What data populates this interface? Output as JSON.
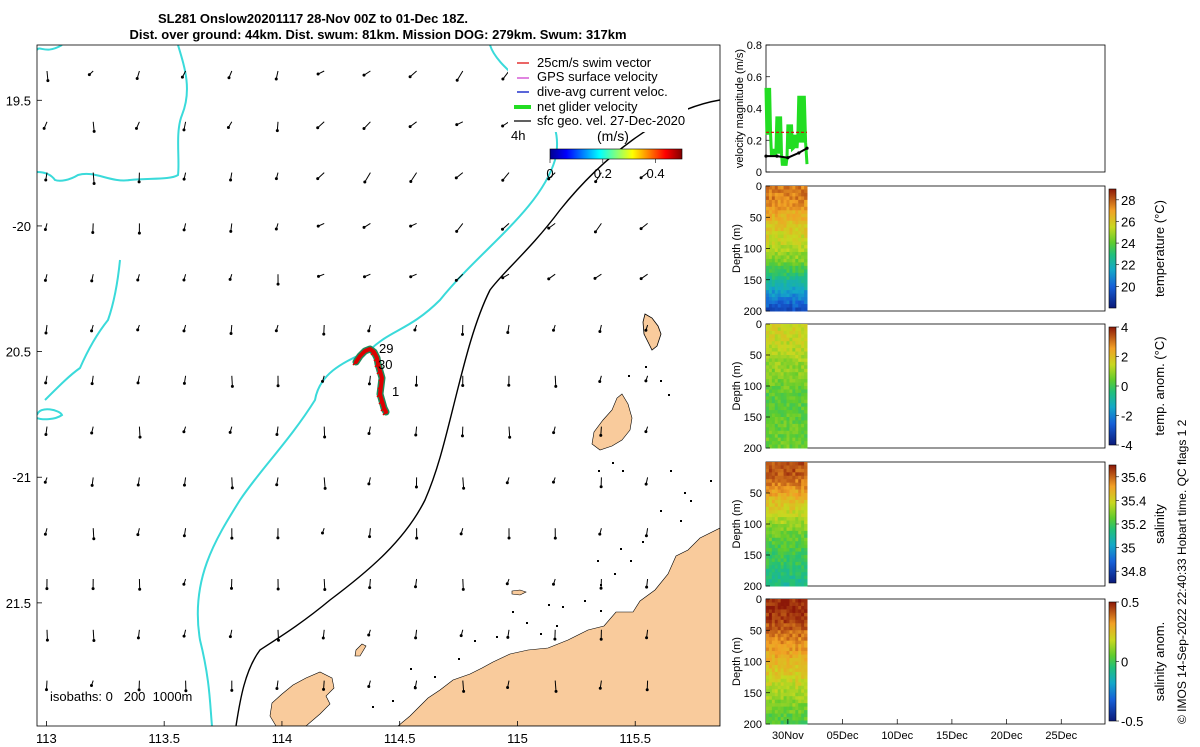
{
  "title_line1": "SL281 Onslow20201117 28-Nov 00Z to 01-Dec 18Z.",
  "title_line2": "Dist. over ground: 44km. Dist. swum: 81km. Mission DOG: 279km. Swum: 317km",
  "colors": {
    "land": "#F9CB9C",
    "coast_isobath": "#3ADADA",
    "deep_isobath": "#000000",
    "track": "#DD0000",
    "track_outline": "#1E8A5A",
    "net_velocity": "#22DD22",
    "swim_vector": "#DD0000",
    "gps_velocity": "#CC33CC",
    "current_velocity": "#2233CC"
  },
  "map": {
    "lon_ticks": [
      "113",
      "113.5",
      "114",
      "114.5",
      "115",
      "115.5"
    ],
    "lat_ticks": [
      "19.5",
      "-20",
      "20.5",
      "-21",
      "21.5"
    ],
    "lon_range": [
      112.96,
      115.86
    ],
    "lat_range": [
      -21.99,
      -19.28
    ],
    "legend": [
      {
        "key": "swim",
        "label": "25cm/s swim vector"
      },
      {
        "key": "gps",
        "label": "GPS surface velocity"
      },
      {
        "key": "current",
        "label": "dive-avg current veloc."
      },
      {
        "key": "net",
        "label": "net glider velocity"
      },
      {
        "key": "geo",
        "label": "sfc geo. vel. 27-Dec-2020"
      }
    ],
    "legend_time": "4h",
    "colorbar_unit": "(m/s)",
    "colorbar_ticks": [
      "0",
      "0.2",
      "0.4"
    ],
    "colorbar_range": [
      0,
      0.5
    ],
    "isobaths_label": "isobaths: 0   200  1000m",
    "track_labels": [
      "29",
      "30",
      "1"
    ]
  },
  "chart_data": [
    {
      "type": "line",
      "name": "velocity",
      "ylabel": "velocity magnitude (m/s)",
      "ylim": [
        0,
        0.8
      ],
      "yticks": [
        "0",
        "0.2",
        "0.4",
        "0.6",
        "0.8"
      ],
      "series": [
        {
          "key": "net",
          "x": [
            "2020-11-28",
            "2020-11-28T12",
            "2020-11-29",
            "2020-11-29T12",
            "2020-11-30",
            "2020-11-30T12",
            "2020-12-01",
            "2020-12-01T18"
          ],
          "values": [
            0.53,
            0.1,
            0.35,
            0.04,
            0.3,
            0.15,
            0.48,
            0.05
          ]
        },
        {
          "key": "geo",
          "x": [
            "2020-11-28",
            "2020-11-29",
            "2020-11-30",
            "2020-12-01",
            "2020-12-01T18"
          ],
          "values": [
            0.1,
            0.1,
            0.09,
            0.12,
            0.15
          ]
        },
        {
          "key": "swim",
          "x": [
            "2020-11-28",
            "2020-12-01T18"
          ],
          "values": [
            0.25,
            0.25
          ]
        }
      ]
    },
    {
      "type": "heatmap",
      "name": "temperature",
      "ylabel": "Depth (m)",
      "clabel": "temperature (°C)",
      "ylim": [
        0,
        200
      ],
      "yticks": [
        "0",
        "50",
        "100",
        "150",
        "200"
      ],
      "clim": [
        18,
        29
      ],
      "cticks": [
        "20",
        "22",
        "24",
        "26",
        "28"
      ],
      "surface": 27.5,
      "mid": 24.5,
      "bottom": 19.5
    },
    {
      "type": "heatmap",
      "name": "temp_anomaly",
      "ylabel": "Depth (m)",
      "clabel": "temp. anom. (°C)",
      "ylim": [
        0,
        200
      ],
      "yticks": [
        "0",
        "50",
        "100",
        "150",
        "200"
      ],
      "clim": [
        -4,
        4
      ],
      "cticks": [
        "-4",
        "-2",
        "0",
        "2",
        "4"
      ],
      "surface": 1.5,
      "mid": 0.3,
      "bottom": 0.5
    },
    {
      "type": "heatmap",
      "name": "salinity",
      "ylabel": "Depth (m)",
      "clabel": "salinity",
      "ylim": [
        0,
        200
      ],
      "yticks": [
        "50",
        "100",
        "150",
        "200"
      ],
      "clim": [
        34.7,
        35.7
      ],
      "cticks": [
        "34.8",
        "35",
        "35.2",
        "35.4",
        "35.6"
      ],
      "surface": 35.62,
      "mid": 35.25,
      "bottom": 35.12
    },
    {
      "type": "heatmap",
      "name": "sal_anomaly",
      "ylabel": "Depth (m)",
      "clabel": "salinity anom.",
      "ylim": [
        0,
        200
      ],
      "yticks": [
        "0",
        "50",
        "100",
        "150",
        "200"
      ],
      "clim": [
        -0.5,
        0.5
      ],
      "cticks": [
        "-0.5",
        "0",
        "0.5"
      ],
      "surface": 0.48,
      "mid": 0.22,
      "bottom": 0.02
    }
  ],
  "time_axis": {
    "range": [
      "2020-11-28",
      "2020-12-29"
    ],
    "ticks": [
      "30Nov",
      "05Dec",
      "10Dec",
      "15Dec",
      "20Dec",
      "25Dec"
    ],
    "data_range": [
      "2020-11-28",
      "2020-12-01T18"
    ]
  },
  "footer": "© IMOS 14-Sep-2022 22:40:33 Hobart time. QC flags 1  2"
}
